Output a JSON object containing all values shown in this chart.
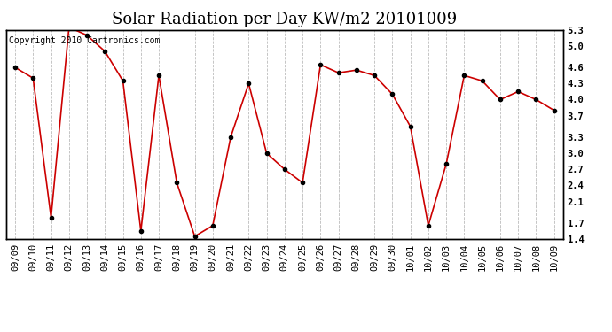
{
  "title": "Solar Radiation per Day KW/m2 20101009",
  "copyright_text": "Copyright 2010 Cartronics.com",
  "labels": [
    "09/09",
    "09/10",
    "09/11",
    "09/12",
    "09/13",
    "09/14",
    "09/15",
    "09/16",
    "09/17",
    "09/18",
    "09/19",
    "09/20",
    "09/21",
    "09/22",
    "09/23",
    "09/24",
    "09/25",
    "09/26",
    "09/27",
    "09/28",
    "09/29",
    "09/30",
    "10/01",
    "10/02",
    "10/03",
    "10/04",
    "10/05",
    "10/06",
    "10/07",
    "10/08",
    "10/09"
  ],
  "values": [
    4.6,
    4.4,
    1.8,
    5.35,
    5.2,
    4.9,
    4.35,
    1.55,
    4.45,
    2.45,
    1.45,
    1.65,
    3.3,
    4.3,
    3.0,
    2.7,
    2.45,
    4.65,
    4.5,
    4.55,
    4.45,
    4.1,
    3.5,
    1.65,
    2.8,
    4.45,
    4.35,
    4.0,
    4.15,
    4.0,
    3.8
  ],
  "line_color": "#cc0000",
  "marker": "o",
  "marker_size": 3,
  "marker_color": "#000000",
  "bg_color": "#ffffff",
  "grid_color": "#bbbbbb",
  "ylim": [
    1.4,
    5.3
  ],
  "yticks": [
    1.4,
    1.7,
    2.1,
    2.4,
    2.7,
    3.0,
    3.3,
    3.7,
    4.0,
    4.3,
    4.6,
    5.0,
    5.3
  ],
  "title_fontsize": 13,
  "copyright_fontsize": 7,
  "tick_fontsize": 7.5,
  "figwidth": 6.9,
  "figheight": 3.75,
  "dpi": 100
}
